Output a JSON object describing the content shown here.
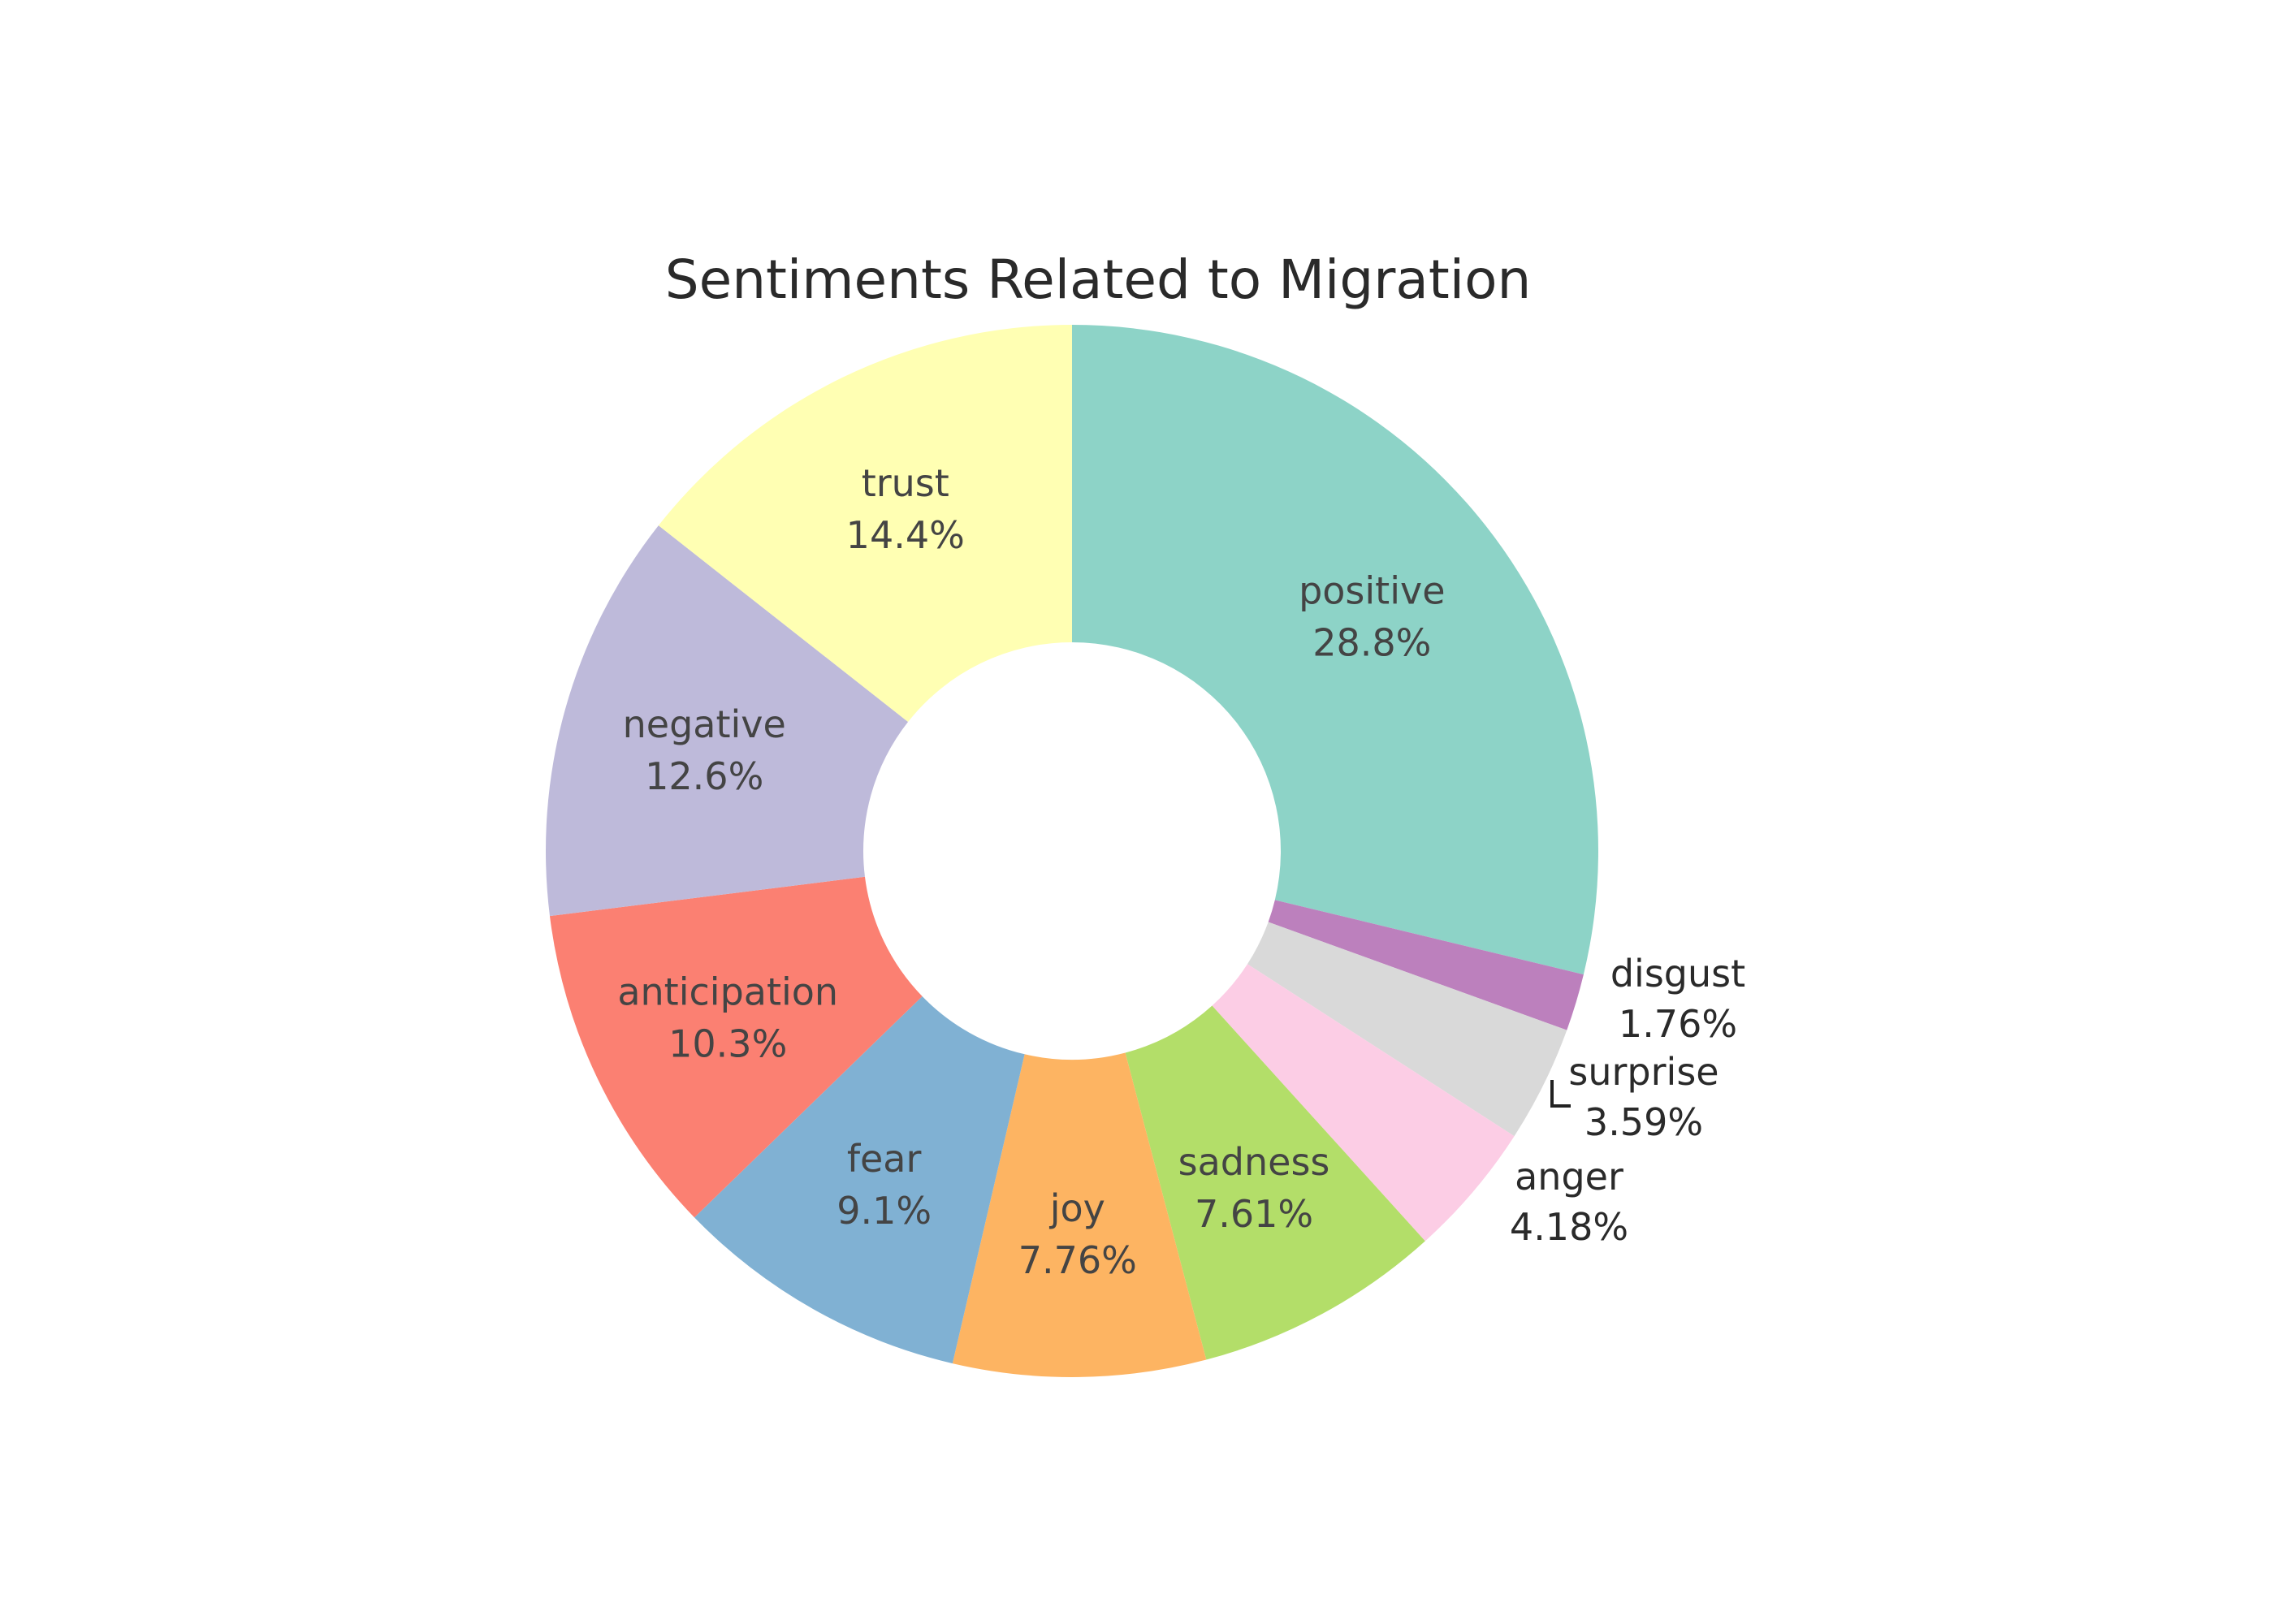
{
  "chart_data": {
    "type": "pie",
    "donut": true,
    "title": "Sentiments Related to Migration",
    "direction": "clockwise",
    "start": "top",
    "slices": [
      {
        "label": "positive",
        "value": 28.8,
        "text": "28.8%",
        "color": "#8dd3c7",
        "label_position": "inside"
      },
      {
        "label": "disgust",
        "value": 1.76,
        "text": "1.76%",
        "color": "#bc80bd",
        "label_position": "outside"
      },
      {
        "label": "surprise",
        "value": 3.59,
        "text": "3.59%",
        "color": "#d9d9d9",
        "label_position": "outside"
      },
      {
        "label": "anger",
        "value": 4.18,
        "text": "4.18%",
        "color": "#fccde5",
        "label_position": "outside"
      },
      {
        "label": "sadness",
        "value": 7.61,
        "text": "7.61%",
        "color": "#b3de69",
        "label_position": "inside"
      },
      {
        "label": "joy",
        "value": 7.76,
        "text": "7.76%",
        "color": "#fdb462",
        "label_position": "inside"
      },
      {
        "label": "fear",
        "value": 9.1,
        "text": "9.1%",
        "color": "#80b1d3",
        "label_position": "inside"
      },
      {
        "label": "anticipation",
        "value": 10.3,
        "text": "10.3%",
        "color": "#fb8072",
        "label_position": "inside"
      },
      {
        "label": "negative",
        "value": 12.6,
        "text": "12.6%",
        "color": "#bebada",
        "label_position": "inside"
      },
      {
        "label": "trust",
        "value": 14.4,
        "text": "14.4%",
        "color": "#ffffb3",
        "label_position": "inside"
      }
    ],
    "colors": {
      "inside_text": "#444444",
      "outside_text": "#2a2a2a",
      "leader_line": "#222222"
    }
  }
}
